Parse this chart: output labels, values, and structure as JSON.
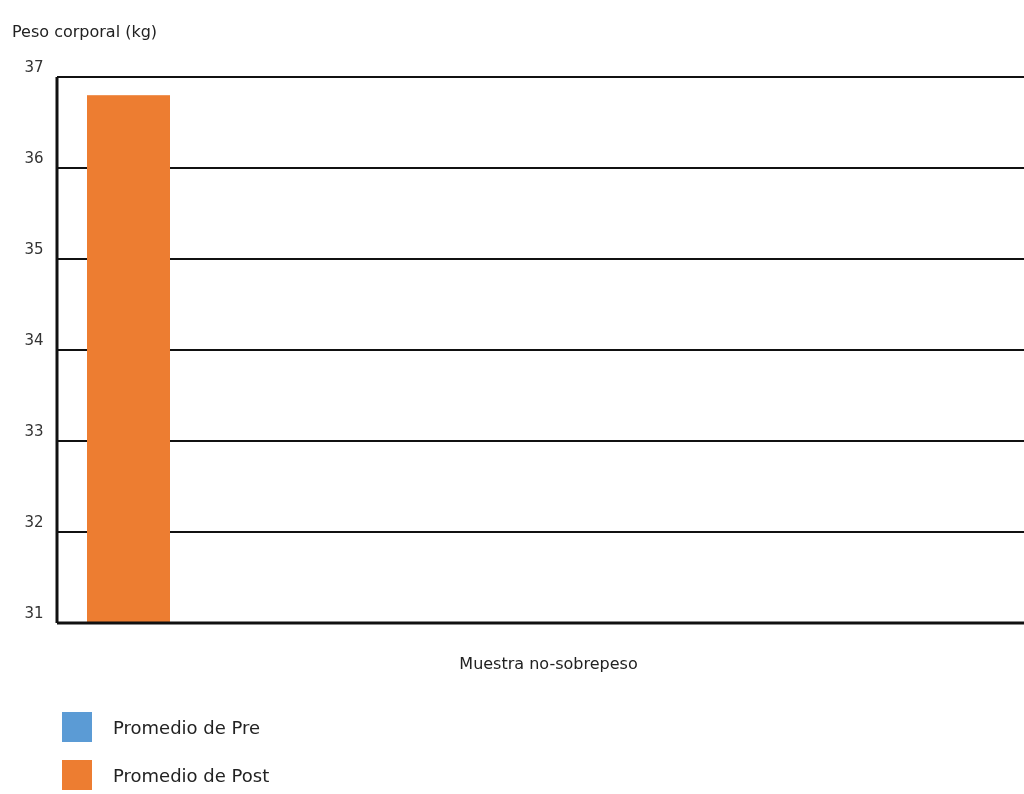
{
  "chart_data": {
    "type": "bar",
    "ylabel": "Peso corporal (kg)",
    "categories": [
      "Muestra no-sobrepeso"
    ],
    "series": [
      {
        "name": "Promedio de Pre",
        "color": "#5b9bd5",
        "values": [
          null
        ]
      },
      {
        "name": "Promedio de Post",
        "color": "#ed7d31",
        "values": [
          36.8
        ]
      }
    ],
    "ylim": [
      31,
      37
    ],
    "yticks": [
      31,
      32,
      33,
      34,
      35,
      36,
      37
    ],
    "grid": "y",
    "legend": "bottom left"
  }
}
